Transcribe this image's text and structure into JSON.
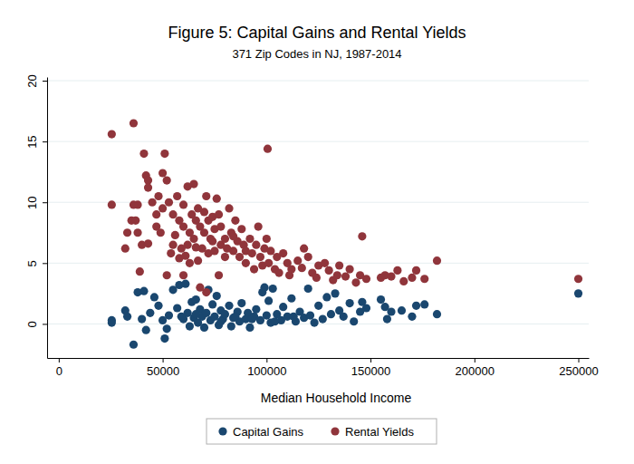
{
  "chart_data": {
    "type": "scatter",
    "title": "Figure 5: Capital Gains and Rental Yields",
    "subtitle": "371 Zip Codes in NJ, 1987-2014",
    "x_label": "Median Household Income",
    "xlim": [
      -5600,
      255000
    ],
    "xticks": [
      0,
      50000,
      100000,
      150000,
      200000,
      250000
    ],
    "ylim": [
      -2.8,
      20.3
    ],
    "yticks": [
      0,
      5,
      10,
      15,
      20
    ],
    "grid": true,
    "legend": "bottom",
    "marker": "circle",
    "series": [
      {
        "name": "Capital Gains",
        "color": "#1a476f",
        "x": [
          36000,
          25500,
          25500,
          33000,
          32000,
          38000,
          41000,
          40000,
          42000,
          44000,
          46000,
          48000,
          50000,
          51000,
          52000,
          53000,
          55000,
          57000,
          58000,
          60000,
          61000,
          62000,
          63000,
          64000,
          65000,
          66000,
          67000,
          68000,
          69000,
          70000,
          71000,
          72000,
          73000,
          74000,
          75000,
          76000,
          77000,
          78000,
          79000,
          80000,
          82000,
          83000,
          84000,
          86000,
          87000,
          88000,
          90000,
          91000,
          92000,
          94000,
          95000,
          97000,
          98000,
          99000,
          100000,
          101000,
          102000,
          103000,
          105000,
          107000,
          108000,
          110000,
          112000,
          114000,
          116000,
          118000,
          120000,
          121000,
          123000,
          125000,
          127000,
          129000,
          131000,
          133000,
          135000,
          137000,
          140000,
          142000,
          145000,
          146000,
          148000,
          155000,
          157000,
          158000,
          160000,
          165000,
          170000,
          172000,
          176000,
          182000,
          250000,
          59000,
          66000,
          78000,
          85000,
          93000,
          104000,
          113000
        ],
        "values": [
          -1.7,
          0.3,
          0.1,
          0.6,
          1.1,
          2.6,
          2.7,
          0.4,
          -0.5,
          0.9,
          2.2,
          1.5,
          0.3,
          -1.2,
          -0.4,
          0.7,
          2.8,
          1.3,
          3.2,
          0.4,
          3.3,
          0.9,
          -0.2,
          1.8,
          0.5,
          2,
          0.1,
          1.2,
          0.6,
          -0.3,
          0.9,
          2.8,
          0.3,
          1.6,
          0.6,
          2.3,
          -0.1,
          1.1,
          0.4,
          0.8,
          1.5,
          -0.2,
          0.5,
          1,
          0.2,
          1.7,
          0.4,
          0.9,
          -0.3,
          0.6,
          1.2,
          0.3,
          2.6,
          3,
          0.7,
          1.9,
          0.1,
          2.9,
          0.8,
          0.3,
          1.4,
          0.6,
          2.1,
          0.2,
          1,
          0.5,
          2.9,
          0.7,
          0.1,
          1.5,
          0.4,
          2.2,
          0.8,
          2.5,
          1.1,
          0.6,
          1.7,
          0.2,
          1,
          1.8,
          1.3,
          2,
          1.4,
          0.4,
          1,
          1.1,
          0.6,
          1.5,
          1.6,
          0.8,
          2.5,
          0.6,
          0.8,
          0.2,
          0.6,
          0.4,
          0.2,
          0.6
        ]
      },
      {
        "name": "Rental Yields",
        "color": "#90353b",
        "x": [
          25500,
          25500,
          36000,
          100500,
          41000,
          42000,
          43000,
          43000,
          50000,
          52000,
          51000,
          48000,
          45000,
          38000,
          36000,
          35000,
          37000,
          33000,
          32000,
          38000,
          39000,
          40000,
          43000,
          47000,
          47000,
          49000,
          50000,
          53000,
          55000,
          57000,
          60000,
          62000,
          65000,
          64000,
          63000,
          60000,
          58000,
          55000,
          54000,
          56000,
          58000,
          60000,
          59000,
          62000,
          65000,
          66000,
          67000,
          68000,
          70000,
          70000,
          71000,
          72000,
          73000,
          74000,
          75000,
          76000,
          77000,
          78000,
          78000,
          80000,
          80000,
          82000,
          83000,
          84000,
          85000,
          86000,
          87000,
          88000,
          89000,
          90000,
          90000,
          92000,
          93000,
          94000,
          95000,
          96000,
          97000,
          98000,
          99000,
          100000,
          101000,
          102000,
          104000,
          105000,
          106000,
          108000,
          110000,
          111000,
          112000,
          115000,
          117000,
          118000,
          120000,
          122000,
          124000,
          125000,
          128000,
          130000,
          132000,
          134000,
          135000,
          138000,
          140000,
          143000,
          146000,
          145000,
          148000,
          155000,
          157000,
          160000,
          163000,
          166000,
          170000,
          172000,
          176000,
          182000,
          250000,
          71000,
          68000,
          67000,
          69000,
          72000,
          75000,
          63000,
          77000,
          52000,
          61000,
          81000,
          84000,
          66000,
          74000
        ],
        "values": [
          15.6,
          9.8,
          16.5,
          14.4,
          14,
          12.2,
          11.8,
          11.2,
          12.4,
          11.8,
          14,
          10.5,
          10,
          9.8,
          9.8,
          8.5,
          8.5,
          7.5,
          6.2,
          7.5,
          4.3,
          6.5,
          6.6,
          9,
          8,
          7.5,
          9.5,
          10,
          9,
          10.5,
          9.8,
          11.3,
          11.5,
          9,
          7.5,
          8,
          8.5,
          6.5,
          5.8,
          7.3,
          5.4,
          4,
          6.2,
          6.5,
          7,
          8.5,
          9.5,
          8,
          7.5,
          9.2,
          10.5,
          8.5,
          7,
          8.8,
          7.8,
          10.3,
          9,
          6.5,
          8,
          7,
          5.5,
          9.5,
          7.5,
          6,
          8.5,
          6.8,
          5.5,
          7.8,
          6.5,
          6,
          5,
          7,
          5.8,
          4.5,
          6.5,
          8,
          5.5,
          4.8,
          6.2,
          7,
          5,
          6,
          4.5,
          5.5,
          4.2,
          5.8,
          5,
          4,
          4.5,
          5.2,
          4.6,
          6.2,
          5.5,
          4.2,
          3.8,
          4.8,
          5,
          4.4,
          3.6,
          4,
          4.8,
          3.9,
          4.5,
          3.4,
          7.2,
          4,
          3.7,
          3.8,
          4,
          3.9,
          4.4,
          3.5,
          3.8,
          4.4,
          3.7,
          5.2,
          3.7,
          2.6,
          3,
          5.2,
          6.2,
          5.8,
          6,
          5,
          4,
          4,
          5.6,
          6.2,
          7.2,
          6.3,
          6.8
        ]
      }
    ]
  }
}
